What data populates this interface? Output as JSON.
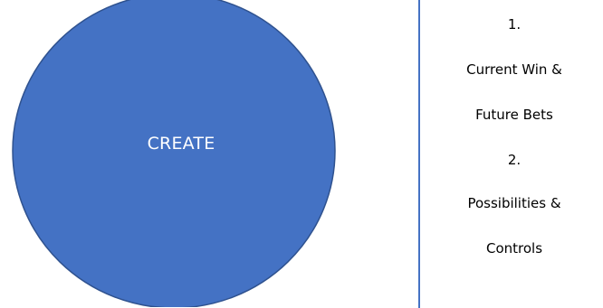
{
  "diagram": {
    "circle": {
      "label": "CREATE",
      "fill": "#4472c4",
      "stroke": "#2f528f"
    },
    "textbox": {
      "border_color": "#4472c4",
      "lines": [
        "1.",
        "Current Win &",
        "Future Bets",
        "2.",
        "Possibilities &",
        "Controls"
      ]
    }
  }
}
